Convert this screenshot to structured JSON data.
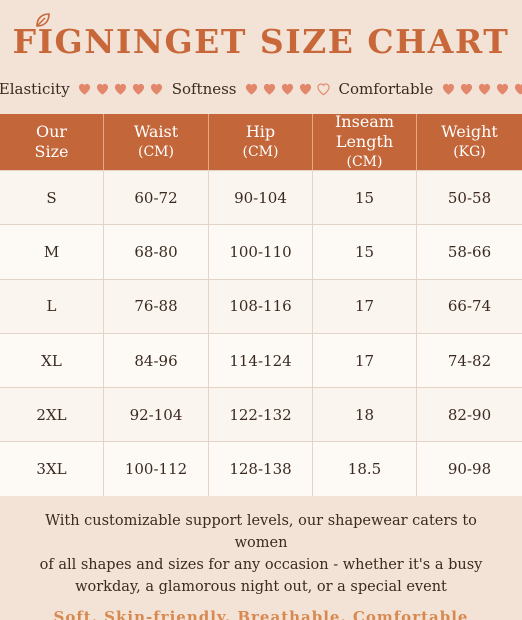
{
  "header": {
    "brand_title": "FIGNINGET SIZE CHART",
    "features": [
      {
        "label": "Elasticity",
        "filled": 5,
        "outline": 0
      },
      {
        "label": "Softness",
        "filled": 4,
        "outline": 1
      },
      {
        "label": "Comfortable",
        "filled": 5,
        "outline": 0
      }
    ]
  },
  "colors": {
    "brand": "#c8683a",
    "header_bg": "#c3663a",
    "heart": "#e2876a",
    "tagline": "#d7894f"
  },
  "table": {
    "columns": [
      {
        "label": "Our",
        "label2": "Size"
      },
      {
        "label": "Waist",
        "label2": "(CM)"
      },
      {
        "label": "Hip",
        "label2": "(CM)"
      },
      {
        "label": "Inseam Length",
        "label2": "(CM)"
      },
      {
        "label": "Weight",
        "label2": "(KG)"
      }
    ],
    "rows": [
      [
        "S",
        "60-72",
        "90-104",
        "15",
        "50-58"
      ],
      [
        "M",
        "68-80",
        "100-110",
        "15",
        "58-66"
      ],
      [
        "L",
        "76-88",
        "108-116",
        "17",
        "66-74"
      ],
      [
        "XL",
        "84-96",
        "114-124",
        "17",
        "74-82"
      ],
      [
        "2XL",
        "92-104",
        "122-132",
        "18",
        "82-90"
      ],
      [
        "3XL",
        "100-112",
        "128-138",
        "18.5",
        "90-98"
      ]
    ]
  },
  "footer": {
    "description_lines": [
      "With customizable support levels, our shapewear caters to women",
      "of all shapes and sizes for any occasion - whether it's a busy",
      "workday, a glamorous night out, or a special event"
    ],
    "tagline": "Soft. Skin-friendly. Breathable. Comfortable"
  }
}
